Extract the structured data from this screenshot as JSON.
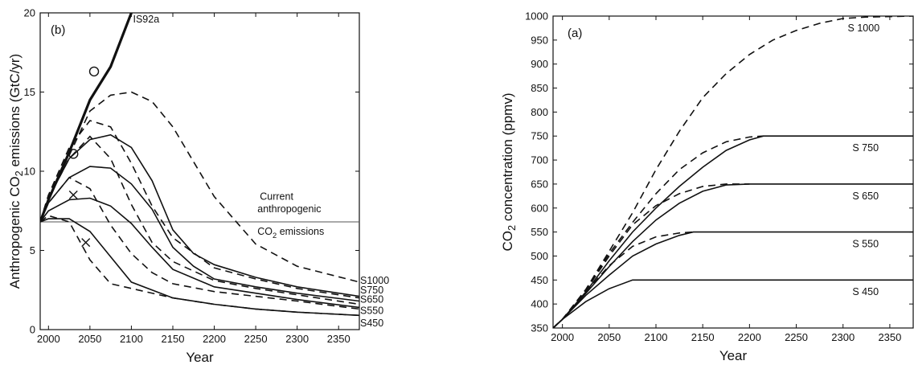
{
  "chart_data": [
    {
      "type": "line",
      "panel_label": "(b)",
      "xlabel": "Year",
      "ylabel": [
        "Anthropogenic CO",
        "2",
        " emissions (GtC/yr)"
      ],
      "xlim": [
        1990,
        2375
      ],
      "ylim": [
        0,
        20
      ],
      "xticks": [
        2000,
        2050,
        2100,
        2150,
        2200,
        2250,
        2300,
        2350
      ],
      "yticks": [
        0,
        5,
        10,
        15,
        20
      ],
      "annotation": {
        "lines": [
          "Current",
          "anthropogenic"
        ],
        "co2_prefix": "CO",
        "co2_sub": "2",
        "co2_suffix": " emissions"
      },
      "reference_line": {
        "y": 6.8
      },
      "series": [
        {
          "name": "IS92a",
          "style": "thick",
          "x": [
            1990,
            2000,
            2025,
            2050,
            2075,
            2100
          ],
          "y": [
            6.8,
            8.2,
            11.2,
            14.5,
            16.6,
            20.0
          ]
        },
        {
          "name": "S1000",
          "style": "dashed",
          "x": [
            1990,
            2000,
            2025,
            2050,
            2075,
            2100,
            2125,
            2150,
            2175,
            2200,
            2250,
            2300,
            2375
          ],
          "y": [
            6.8,
            8.5,
            11.0,
            13.8,
            14.8,
            15.0,
            14.4,
            12.8,
            10.6,
            8.4,
            5.4,
            4.0,
            3.0
          ]
        },
        {
          "name": "S1000",
          "style": "solid",
          "x": [
            1990,
            2000,
            2025,
            2050,
            2075,
            2100,
            2125,
            2150,
            2175,
            2200,
            2250,
            2300,
            2375
          ],
          "y": [
            6.8,
            8.3,
            10.8,
            12.0,
            12.3,
            11.5,
            9.4,
            6.3,
            4.8,
            4.1,
            3.3,
            2.7,
            2.1
          ]
        },
        {
          "name": "S750",
          "style": "dashed",
          "x": [
            1990,
            2000,
            2025,
            2050,
            2075,
            2100,
            2125,
            2150,
            2200,
            2250,
            2300,
            2375
          ],
          "y": [
            6.8,
            8.5,
            11.5,
            13.2,
            12.8,
            10.5,
            7.8,
            5.8,
            3.9,
            3.2,
            2.6,
            2.0
          ]
        },
        {
          "name": "S650",
          "style": "solid",
          "x": [
            1990,
            2000,
            2025,
            2050,
            2075,
            2100,
            2125,
            2150,
            2175,
            2200,
            2250,
            2300,
            2375
          ],
          "y": [
            6.8,
            8.0,
            9.6,
            10.3,
            10.2,
            9.2,
            7.6,
            5.2,
            4.0,
            3.2,
            2.7,
            2.3,
            1.8
          ]
        },
        {
          "name": "S650",
          "style": "dashed",
          "x": [
            1990,
            2000,
            2025,
            2050,
            2075,
            2100,
            2125,
            2150,
            2200,
            2250,
            2300,
            2375
          ],
          "y": [
            6.8,
            8.3,
            10.8,
            12.2,
            10.8,
            7.9,
            5.5,
            4.3,
            3.1,
            2.6,
            2.2,
            1.6
          ]
        },
        {
          "name": "S550",
          "style": "solid",
          "x": [
            1990,
            2000,
            2025,
            2050,
            2075,
            2100,
            2125,
            2150,
            2200,
            2250,
            2300,
            2375
          ],
          "y": [
            6.8,
            7.5,
            8.2,
            8.3,
            7.8,
            6.7,
            5.2,
            3.8,
            2.7,
            2.3,
            1.9,
            1.4
          ]
        },
        {
          "name": "S550",
          "style": "dashed",
          "x": [
            1990,
            2000,
            2025,
            2050,
            2075,
            2100,
            2125,
            2150,
            2200,
            2250,
            2300,
            2375
          ],
          "y": [
            6.8,
            8.0,
            9.6,
            8.9,
            6.6,
            4.8,
            3.6,
            2.9,
            2.4,
            2.1,
            1.8,
            1.3
          ]
        },
        {
          "name": "S450",
          "style": "solid",
          "x": [
            1990,
            2000,
            2025,
            2050,
            2075,
            2100,
            2150,
            2200,
            2250,
            2300,
            2375
          ],
          "y": [
            6.8,
            7.0,
            7.0,
            6.2,
            4.6,
            3.0,
            2.0,
            1.6,
            1.3,
            1.1,
            0.9
          ]
        },
        {
          "name": "S450",
          "style": "dashed",
          "x": [
            1990,
            2000,
            2025,
            2050,
            2075,
            2100,
            2150,
            2200,
            2250,
            2300,
            2375
          ],
          "y": [
            6.8,
            7.2,
            6.8,
            4.4,
            2.9,
            2.6,
            2.0,
            1.6,
            1.3,
            1.1,
            0.9
          ]
        }
      ],
      "markers": [
        {
          "shape": "o",
          "x": 2055,
          "y": 16.3
        },
        {
          "shape": "o",
          "x": 2030,
          "y": 11.1
        },
        {
          "shape": "x",
          "x": 2030,
          "y": 8.5
        },
        {
          "shape": "x",
          "x": 2045,
          "y": 5.5
        }
      ],
      "end_labels": [
        {
          "text": "IS92a",
          "x": 2102,
          "y": 19.6
        },
        {
          "text": "S1000",
          "x": 2376,
          "y": 3.1
        },
        {
          "text": "S750",
          "x": 2376,
          "y": 2.5
        },
        {
          "text": "S650",
          "x": 2376,
          "y": 1.9
        },
        {
          "text": "S550",
          "x": 2376,
          "y": 1.2
        },
        {
          "text": "S450",
          "x": 2376,
          "y": 0.4
        }
      ]
    },
    {
      "type": "line",
      "panel_label": "(a)",
      "xlabel": "Year",
      "ylabel": [
        "CO",
        "2",
        " concentration (ppmv)"
      ],
      "xlim": [
        1990,
        2375
      ],
      "ylim": [
        350,
        1000
      ],
      "xticks": [
        2000,
        2050,
        2100,
        2150,
        2200,
        2250,
        2300,
        2350
      ],
      "yticks": [
        350,
        400,
        450,
        500,
        550,
        600,
        650,
        700,
        750,
        800,
        850,
        900,
        950,
        1000
      ],
      "series": [
        {
          "name": "S 1000",
          "style": "dashed",
          "x": [
            1990,
            2000,
            2025,
            2050,
            2075,
            2100,
            2125,
            2150,
            2175,
            2200,
            2225,
            2250,
            2275,
            2300,
            2325,
            2350,
            2375
          ],
          "y": [
            350,
            368,
            430,
            510,
            590,
            680,
            760,
            830,
            880,
            920,
            950,
            970,
            985,
            995,
            998,
            999,
            1000
          ]
        },
        {
          "name": "S 750",
          "style": "solid",
          "x": [
            1990,
            2000,
            2025,
            2050,
            2075,
            2100,
            2125,
            2150,
            2175,
            2200,
            2215,
            2375
          ],
          "y": [
            350,
            368,
            425,
            490,
            550,
            600,
            645,
            685,
            720,
            742,
            750,
            750
          ]
        },
        {
          "name": "S 750",
          "style": "dashed",
          "x": [
            1990,
            2000,
            2025,
            2050,
            2075,
            2100,
            2125,
            2150,
            2175,
            2200,
            2215
          ],
          "y": [
            350,
            368,
            430,
            505,
            570,
            630,
            680,
            715,
            738,
            748,
            750
          ]
        },
        {
          "name": "S 650",
          "style": "solid",
          "x": [
            1990,
            2000,
            2025,
            2050,
            2075,
            2100,
            2125,
            2150,
            2175,
            2200,
            2375
          ],
          "y": [
            350,
            368,
            422,
            478,
            530,
            575,
            610,
            635,
            648,
            650,
            650
          ]
        },
        {
          "name": "S 650",
          "style": "dashed",
          "x": [
            1990,
            2000,
            2025,
            2050,
            2075,
            2100,
            2125,
            2150,
            2175,
            2200
          ],
          "y": [
            350,
            368,
            428,
            500,
            565,
            605,
            630,
            645,
            650,
            650
          ]
        },
        {
          "name": "S 550",
          "style": "solid",
          "x": [
            1990,
            2000,
            2025,
            2050,
            2075,
            2100,
            2125,
            2140,
            2375
          ],
          "y": [
            350,
            368,
            418,
            460,
            500,
            525,
            543,
            550,
            550
          ]
        },
        {
          "name": "S 550",
          "style": "dashed",
          "x": [
            1990,
            2000,
            2025,
            2050,
            2075,
            2100,
            2125,
            2140
          ],
          "y": [
            350,
            368,
            425,
            480,
            520,
            540,
            548,
            550
          ]
        },
        {
          "name": "S 450",
          "style": "solid",
          "x": [
            1990,
            2000,
            2025,
            2050,
            2075,
            2375
          ],
          "y": [
            350,
            368,
            405,
            432,
            450,
            450
          ]
        }
      ],
      "end_labels": [
        {
          "text": "S 1000",
          "x": 2305,
          "y": 975
        },
        {
          "text": "S 750",
          "x": 2310,
          "y": 725
        },
        {
          "text": "S 650",
          "x": 2310,
          "y": 625
        },
        {
          "text": "S 550",
          "x": 2310,
          "y": 525
        },
        {
          "text": "S 450",
          "x": 2310,
          "y": 425
        }
      ]
    }
  ]
}
